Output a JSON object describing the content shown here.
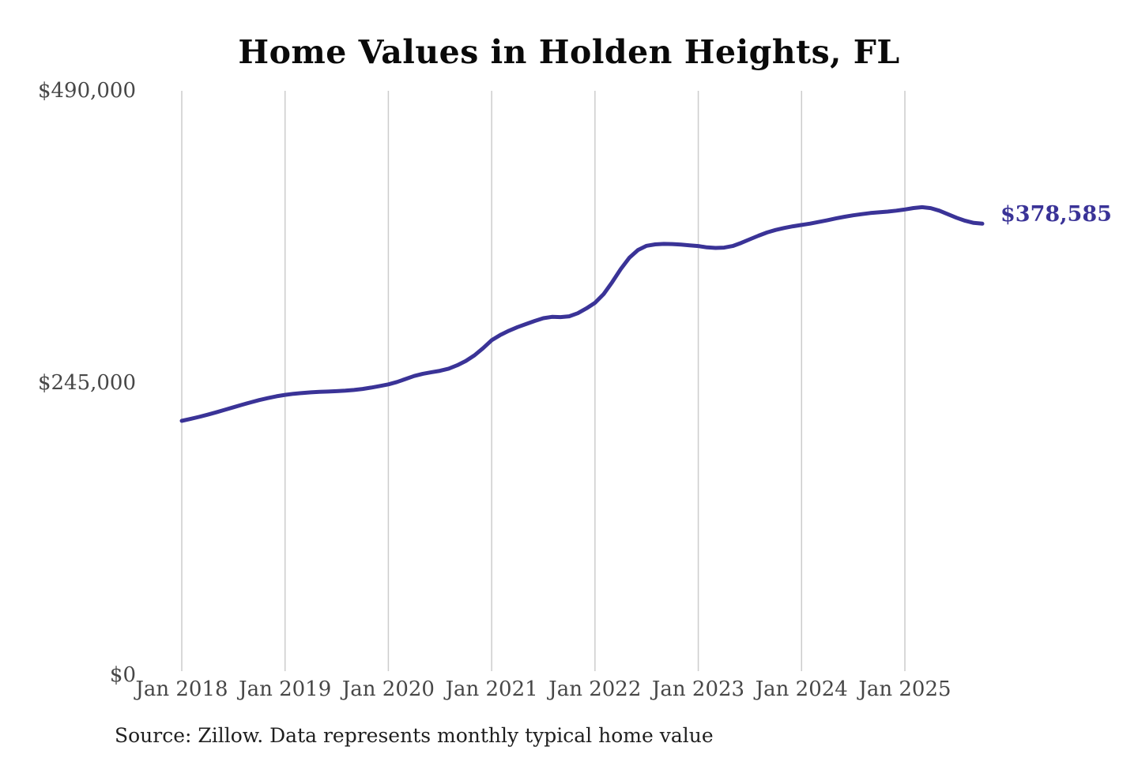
{
  "chart_data": {
    "type": "line",
    "title": "Home Values in Holden Heights, FL",
    "source_note": "Source: Zillow. Data represents monthly typical home value",
    "xlabel": "",
    "ylabel": "",
    "ylim": [
      0,
      490000
    ],
    "grid": "vertical-only",
    "legend": "none",
    "x_tick_labels": [
      "Jan 2018",
      "Jan 2019",
      "Jan 2020",
      "Jan 2021",
      "Jan 2022",
      "Jan 2023",
      "Jan 2024",
      "Jan 2025"
    ],
    "y_ticks": [
      {
        "label": "$490,000",
        "value": 490000
      },
      {
        "label": "$245,000",
        "value": 245000
      },
      {
        "label": "$0",
        "value": 0
      }
    ],
    "end_label": "$378,585",
    "end_value": 378585,
    "series": [
      {
        "name": "Monthly typical home value",
        "unit": "USD",
        "frequency": "monthly",
        "start_month": "2018-01",
        "end_month": "2025-10",
        "values": [
          213200,
          214800,
          216500,
          218400,
          220400,
          222500,
          224600,
          226700,
          228700,
          230600,
          232300,
          233800,
          235000,
          235900,
          236600,
          237100,
          237500,
          237800,
          238100,
          238500,
          239100,
          240000,
          241100,
          242400,
          243800,
          245800,
          248300,
          250800,
          252700,
          254000,
          255200,
          257000,
          259800,
          263500,
          268200,
          274200,
          280800,
          285200,
          288800,
          291800,
          294400,
          297000,
          299300,
          300400,
          300200,
          300900,
          303500,
          307500,
          312200,
          319500,
          329500,
          340500,
          350000,
          356500,
          360000,
          361200,
          361600,
          361500,
          361000,
          360400,
          359800,
          358700,
          358200,
          358500,
          359800,
          362500,
          365500,
          368500,
          371200,
          373300,
          375000,
          376400,
          377500,
          378600,
          380000,
          381500,
          383000,
          384400,
          385600,
          386600,
          387500,
          388100,
          388700,
          389500,
          390500,
          391700,
          392400,
          391600,
          389500,
          386500,
          383500,
          381000,
          379200,
          378585
        ]
      }
    ]
  },
  "colors": {
    "line": "#3a3397",
    "annotation": "#3a3397",
    "grid": "#cccccc",
    "axis_text": "#474747",
    "title_text": "#0a0a0a"
  }
}
